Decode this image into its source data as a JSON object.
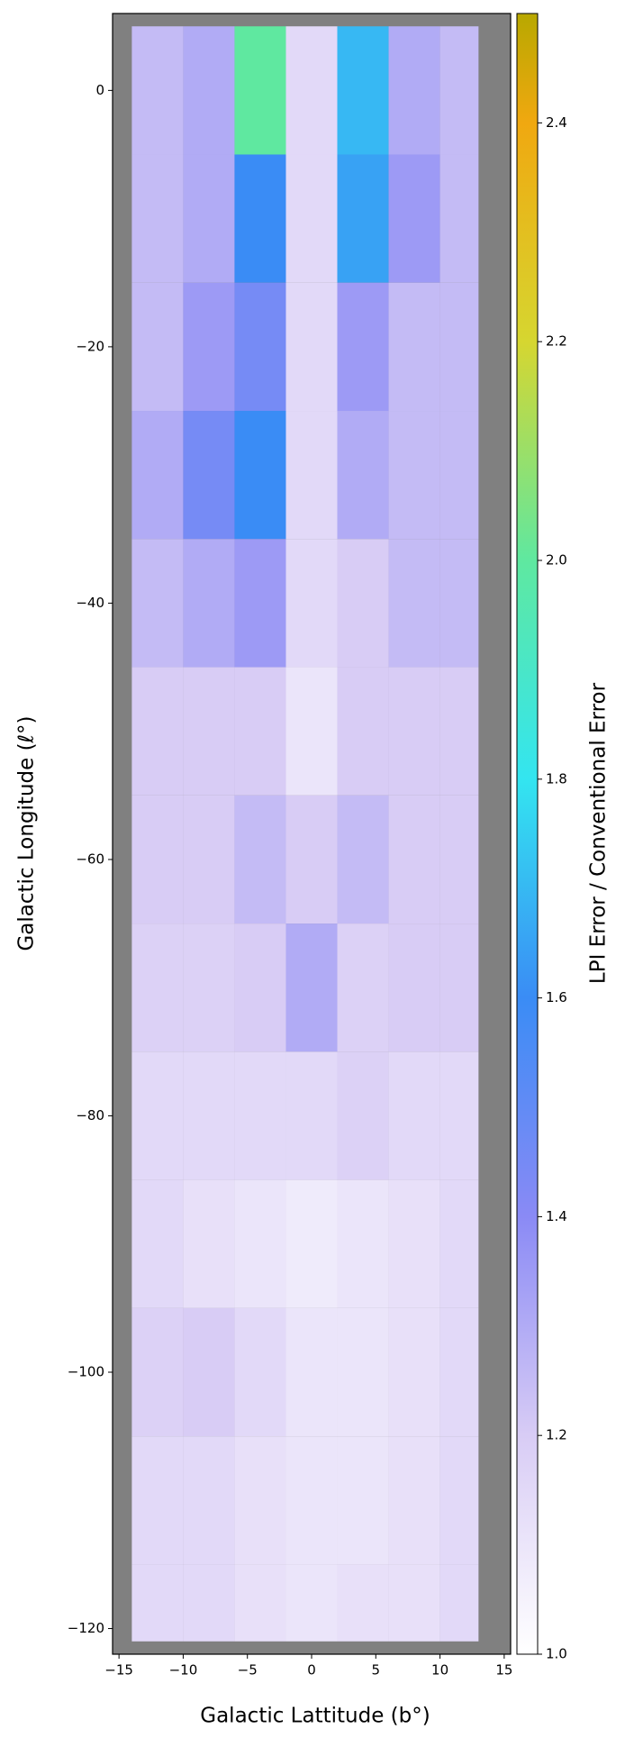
{
  "chart_data": {
    "type": "heatmap",
    "xlabel": "Galactic Lattitude (b°)",
    "ylabel": "Galactic Longitude (ℓ°)",
    "colorbar_label": "LPI Error / Conventional Error",
    "xlim": [
      -15.5,
      15.5
    ],
    "ylim": [
      6,
      -122
    ],
    "xticks": [
      {
        "value": -15,
        "label": "−15"
      },
      {
        "value": -10,
        "label": "−10"
      },
      {
        "value": -5,
        "label": "−5"
      },
      0,
      5,
      10,
      15
    ],
    "yticks": [
      0,
      {
        "value": -20,
        "label": "−20"
      },
      {
        "value": -40,
        "label": "−40"
      },
      {
        "value": -60,
        "label": "−60"
      },
      {
        "value": -80,
        "label": "−80"
      },
      {
        "value": -100,
        "label": "−100"
      },
      {
        "value": -120,
        "label": "−120"
      }
    ],
    "xbins": [
      -14,
      -10,
      -6,
      -2,
      2,
      6,
      10,
      13
    ],
    "ybins": [
      5,
      -5,
      -15,
      -25,
      -35,
      -45,
      -55,
      -65,
      -75,
      -85,
      -95,
      -105,
      -115,
      -121
    ],
    "values": [
      [
        1.25,
        1.3,
        2.0,
        1.15,
        1.7,
        1.3,
        1.25
      ],
      [
        1.25,
        1.3,
        1.6,
        1.15,
        1.65,
        1.35,
        1.25
      ],
      [
        1.25,
        1.35,
        1.45,
        1.15,
        1.35,
        1.25,
        1.25
      ],
      [
        1.3,
        1.45,
        1.6,
        1.15,
        1.3,
        1.25,
        1.25
      ],
      [
        1.25,
        1.3,
        1.35,
        1.15,
        1.2,
        1.25,
        1.25
      ],
      [
        1.2,
        1.2,
        1.2,
        1.1,
        1.2,
        1.2,
        1.2
      ],
      [
        1.2,
        1.2,
        1.25,
        1.2,
        1.25,
        1.2,
        1.2
      ],
      [
        1.18,
        1.18,
        1.2,
        1.3,
        1.18,
        1.2,
        1.2
      ],
      [
        1.15,
        1.15,
        1.15,
        1.15,
        1.18,
        1.15,
        1.15
      ],
      [
        1.15,
        1.12,
        1.1,
        1.08,
        1.1,
        1.12,
        1.15
      ],
      [
        1.18,
        1.2,
        1.15,
        1.1,
        1.1,
        1.12,
        1.15
      ],
      [
        1.15,
        1.15,
        1.12,
        1.1,
        1.1,
        1.12,
        1.15
      ],
      [
        1.15,
        1.15,
        1.12,
        1.1,
        1.12,
        1.12,
        1.15
      ]
    ],
    "clim": [
      1.0,
      2.5
    ],
    "cticks": [
      {
        "value": 1,
        "label": "1.0"
      },
      1.2,
      1.4,
      1.6,
      1.8,
      {
        "value": 2,
        "label": "2.0"
      },
      2.2,
      2.4
    ],
    "colormap": {
      "values": [
        1.0,
        1.2,
        1.4,
        1.6,
        1.8,
        2.0,
        2.2,
        2.4,
        2.5
      ],
      "colors": [
        "#ffffff",
        "#d8ccf5",
        "#8a8af5",
        "#3a8cf5",
        "#33e5f0",
        "#5fe8a0",
        "#d6d630",
        "#f0a810",
        "#b8a800"
      ]
    },
    "background": "#808080"
  }
}
